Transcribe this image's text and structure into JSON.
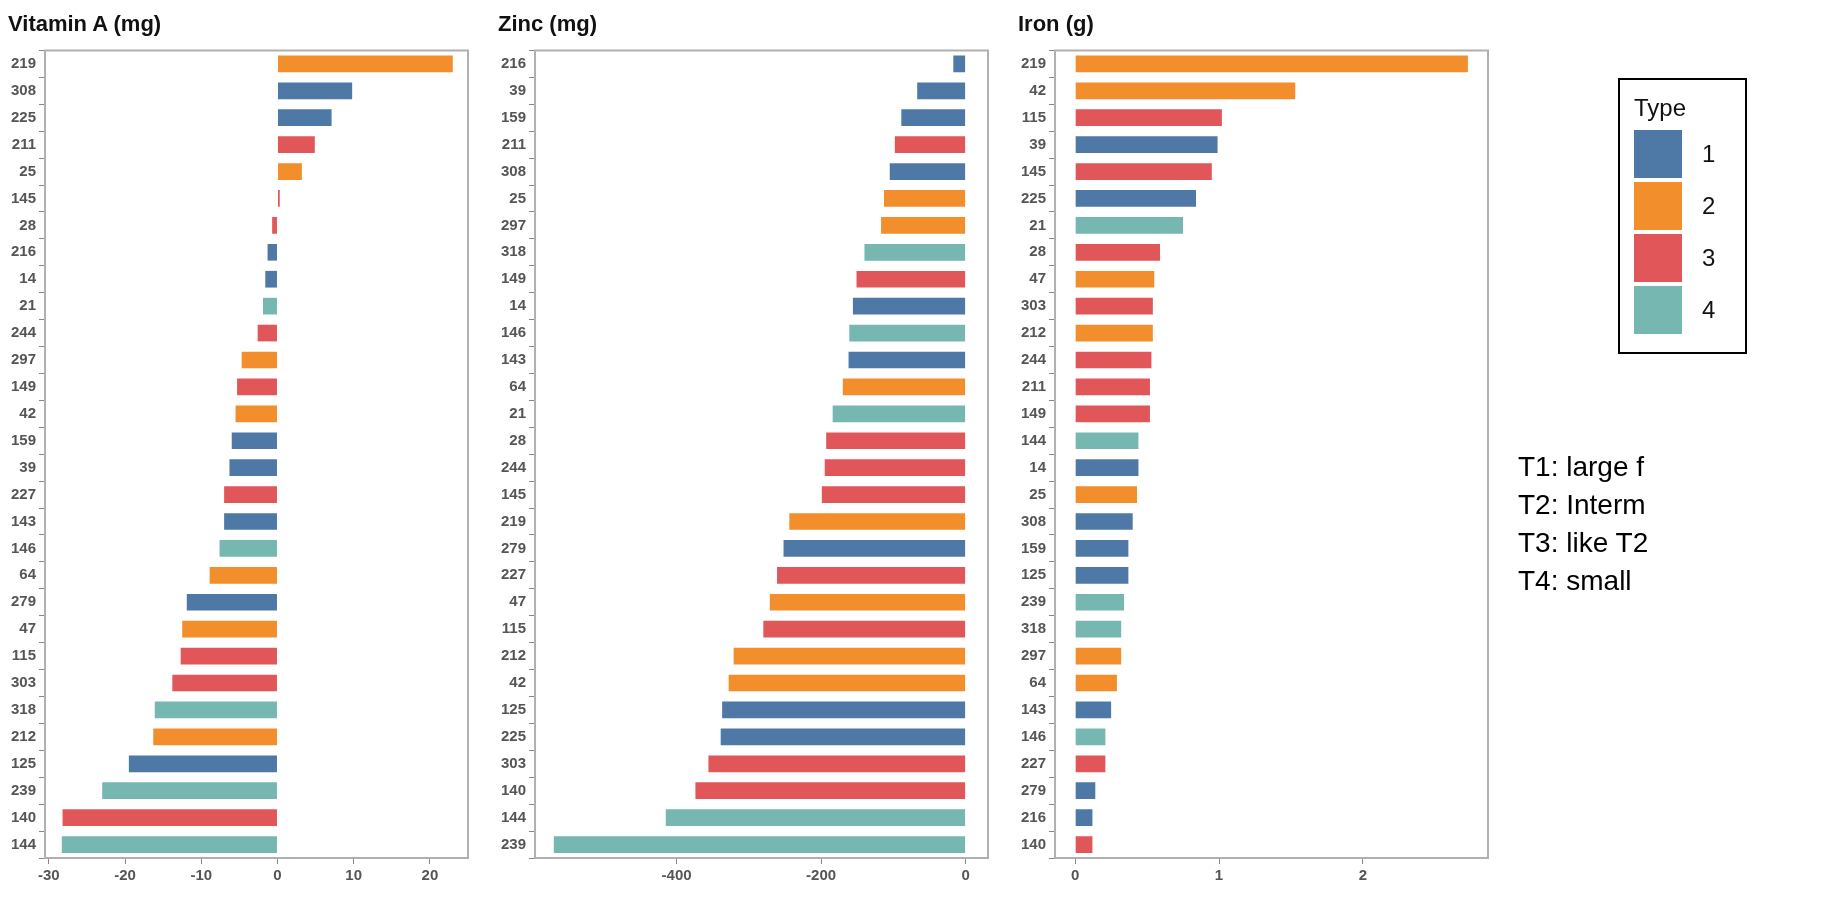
{
  "chart_data": [
    {
      "type": "bar",
      "orientation": "horizontal",
      "title": "Vitamin A (mg)",
      "categories": [
        "219",
        "308",
        "225",
        "211",
        "25",
        "145",
        "28",
        "216",
        "14",
        "21",
        "244",
        "297",
        "149",
        "42",
        "159",
        "39",
        "227",
        "143",
        "146",
        "64",
        "279",
        "47",
        "115",
        "303",
        "318",
        "212",
        "125",
        "239",
        "140",
        "144"
      ],
      "xlim": [
        -30.5,
        25
      ],
      "xticks": [
        -30,
        -20,
        -10,
        0,
        10,
        20
      ],
      "grid": false,
      "legend": false,
      "series": [
        {
          "color": "#4e79a7",
          "values": [
            null,
            9.8,
            7.1,
            null,
            null,
            null,
            null,
            -1.3,
            -1.6,
            null,
            null,
            null,
            null,
            null,
            -6.0,
            -6.3,
            null,
            -7.0,
            null,
            null,
            -11.9,
            null,
            null,
            null,
            null,
            null,
            -19.5,
            null,
            null,
            null
          ]
        },
        {
          "color": "#f28e2b",
          "values": [
            23,
            null,
            null,
            null,
            3.2,
            null,
            null,
            null,
            null,
            null,
            null,
            -4.7,
            null,
            -5.5,
            null,
            null,
            null,
            null,
            null,
            -8.9,
            null,
            -12.5,
            null,
            null,
            null,
            -16.3,
            null,
            null,
            null,
            null
          ]
        },
        {
          "color": "#e15759",
          "values": [
            null,
            null,
            null,
            4.9,
            null,
            0.3,
            -0.7,
            null,
            null,
            null,
            -2.6,
            null,
            -5.3,
            null,
            null,
            null,
            -7.0,
            null,
            null,
            null,
            null,
            null,
            -12.7,
            -13.8,
            null,
            null,
            null,
            null,
            -28.2,
            null
          ]
        },
        {
          "color": "#76b7b2",
          "values": [
            null,
            null,
            null,
            null,
            null,
            null,
            null,
            null,
            null,
            -1.9,
            null,
            null,
            null,
            null,
            null,
            null,
            null,
            null,
            -7.6,
            null,
            null,
            null,
            null,
            null,
            -16.1,
            null,
            null,
            -23.0,
            null,
            -28.3
          ]
        }
      ]
    },
    {
      "type": "bar",
      "orientation": "horizontal",
      "title": "Zinc (mg)",
      "categories": [
        "216",
        "39",
        "159",
        "211",
        "308",
        "25",
        "297",
        "318",
        "149",
        "14",
        "146",
        "143",
        "64",
        "21",
        "28",
        "244",
        "145",
        "219",
        "279",
        "227",
        "47",
        "115",
        "212",
        "42",
        "125",
        "225",
        "303",
        "140",
        "144",
        "239"
      ],
      "xlim": [
        -596,
        31
      ],
      "xticks": [
        -400,
        -200,
        0
      ],
      "grid": false,
      "legend": false,
      "series": [
        {
          "color": "#4e79a7",
          "values": [
            -17,
            -67,
            -89,
            null,
            -105,
            null,
            null,
            null,
            null,
            -156,
            null,
            -162,
            null,
            null,
            null,
            null,
            null,
            null,
            -252,
            null,
            null,
            null,
            null,
            null,
            -337,
            -339,
            null,
            null,
            null,
            null
          ]
        },
        {
          "color": "#f28e2b",
          "values": [
            null,
            null,
            null,
            null,
            null,
            -113,
            -117,
            null,
            null,
            null,
            null,
            null,
            -170,
            null,
            null,
            null,
            null,
            -244,
            null,
            null,
            -271,
            null,
            -321,
            -328,
            null,
            null,
            null,
            null,
            null,
            null
          ]
        },
        {
          "color": "#e15759",
          "values": [
            null,
            null,
            null,
            -98,
            null,
            null,
            null,
            null,
            -151,
            null,
            null,
            null,
            null,
            null,
            -193,
            -195,
            -199,
            null,
            null,
            -261,
            null,
            -280,
            null,
            null,
            null,
            null,
            -356,
            -374,
            null,
            null
          ]
        },
        {
          "color": "#76b7b2",
          "values": [
            null,
            null,
            null,
            null,
            null,
            null,
            null,
            -140,
            null,
            null,
            -161,
            null,
            null,
            -184,
            null,
            null,
            null,
            null,
            null,
            null,
            null,
            null,
            null,
            null,
            null,
            null,
            null,
            null,
            -415,
            -570
          ]
        }
      ]
    },
    {
      "type": "bar",
      "orientation": "horizontal",
      "title": "Iron (g)",
      "categories": [
        "219",
        "42",
        "115",
        "39",
        "145",
        "225",
        "21",
        "28",
        "47",
        "303",
        "212",
        "244",
        "211",
        "149",
        "144",
        "14",
        "25",
        "308",
        "159",
        "125",
        "239",
        "318",
        "297",
        "64",
        "143",
        "146",
        "227",
        "279",
        "216",
        "140"
      ],
      "xlim": [
        -0.14,
        2.87
      ],
      "xticks": [
        0,
        1,
        2
      ],
      "grid": false,
      "legend": "right",
      "legend_title": "Type",
      "annotations": [
        "T1: large f",
        "T2: Interm",
        "T3: like T2",
        "T4: small"
      ],
      "series": [
        {
          "name": "1",
          "color": "#4e79a7",
          "values": [
            null,
            null,
            null,
            0.99,
            null,
            0.84,
            null,
            null,
            null,
            null,
            null,
            null,
            null,
            null,
            null,
            0.44,
            null,
            0.4,
            0.37,
            0.37,
            null,
            null,
            null,
            null,
            0.25,
            null,
            null,
            0.14,
            0.12,
            null
          ]
        },
        {
          "name": "2",
          "color": "#f28e2b",
          "values": [
            2.73,
            1.53,
            null,
            null,
            null,
            null,
            null,
            null,
            0.55,
            null,
            0.54,
            null,
            null,
            null,
            null,
            null,
            0.43,
            null,
            null,
            null,
            null,
            null,
            0.32,
            0.29,
            null,
            null,
            null,
            null,
            null,
            null
          ]
        },
        {
          "name": "3",
          "color": "#e15759",
          "values": [
            null,
            null,
            1.02,
            null,
            0.95,
            null,
            null,
            0.59,
            null,
            0.54,
            null,
            0.53,
            0.52,
            0.52,
            null,
            null,
            null,
            null,
            null,
            null,
            null,
            null,
            null,
            null,
            null,
            null,
            0.21,
            null,
            null,
            0.12
          ]
        },
        {
          "name": "4",
          "color": "#76b7b2",
          "values": [
            null,
            null,
            null,
            null,
            null,
            null,
            0.75,
            null,
            null,
            null,
            null,
            null,
            null,
            null,
            0.44,
            null,
            null,
            null,
            null,
            null,
            0.34,
            0.32,
            null,
            null,
            null,
            0.21,
            null,
            null,
            null,
            null
          ]
        }
      ]
    }
  ]
}
